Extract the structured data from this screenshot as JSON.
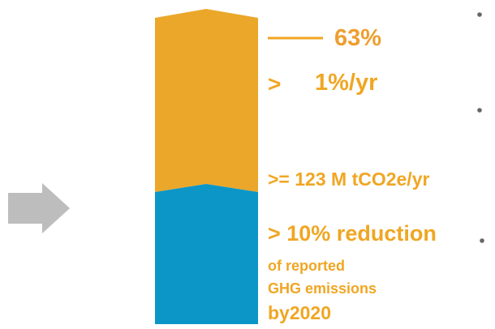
{
  "labels": {
    "share": "63%",
    "growth_sign": ">",
    "growth": "1%/yr",
    "emissions": ">= 123 M tCO2e/yr",
    "reduction_line1": "> 10% reduction",
    "reduction_line2": "of reported",
    "reduction_line3": "GHG emissions",
    "reduction_line4": "by2020"
  },
  "colors": {
    "upper_segment": "#eba729",
    "lower_segment": "#0c96c8",
    "label_text": "#f0a623",
    "leader_line": "#f0a623",
    "arrow": "#bdbdbd",
    "bullet": "#666666"
  },
  "icons": {
    "arrow": "arrow-right-icon",
    "bullet": "bullet-icon"
  }
}
